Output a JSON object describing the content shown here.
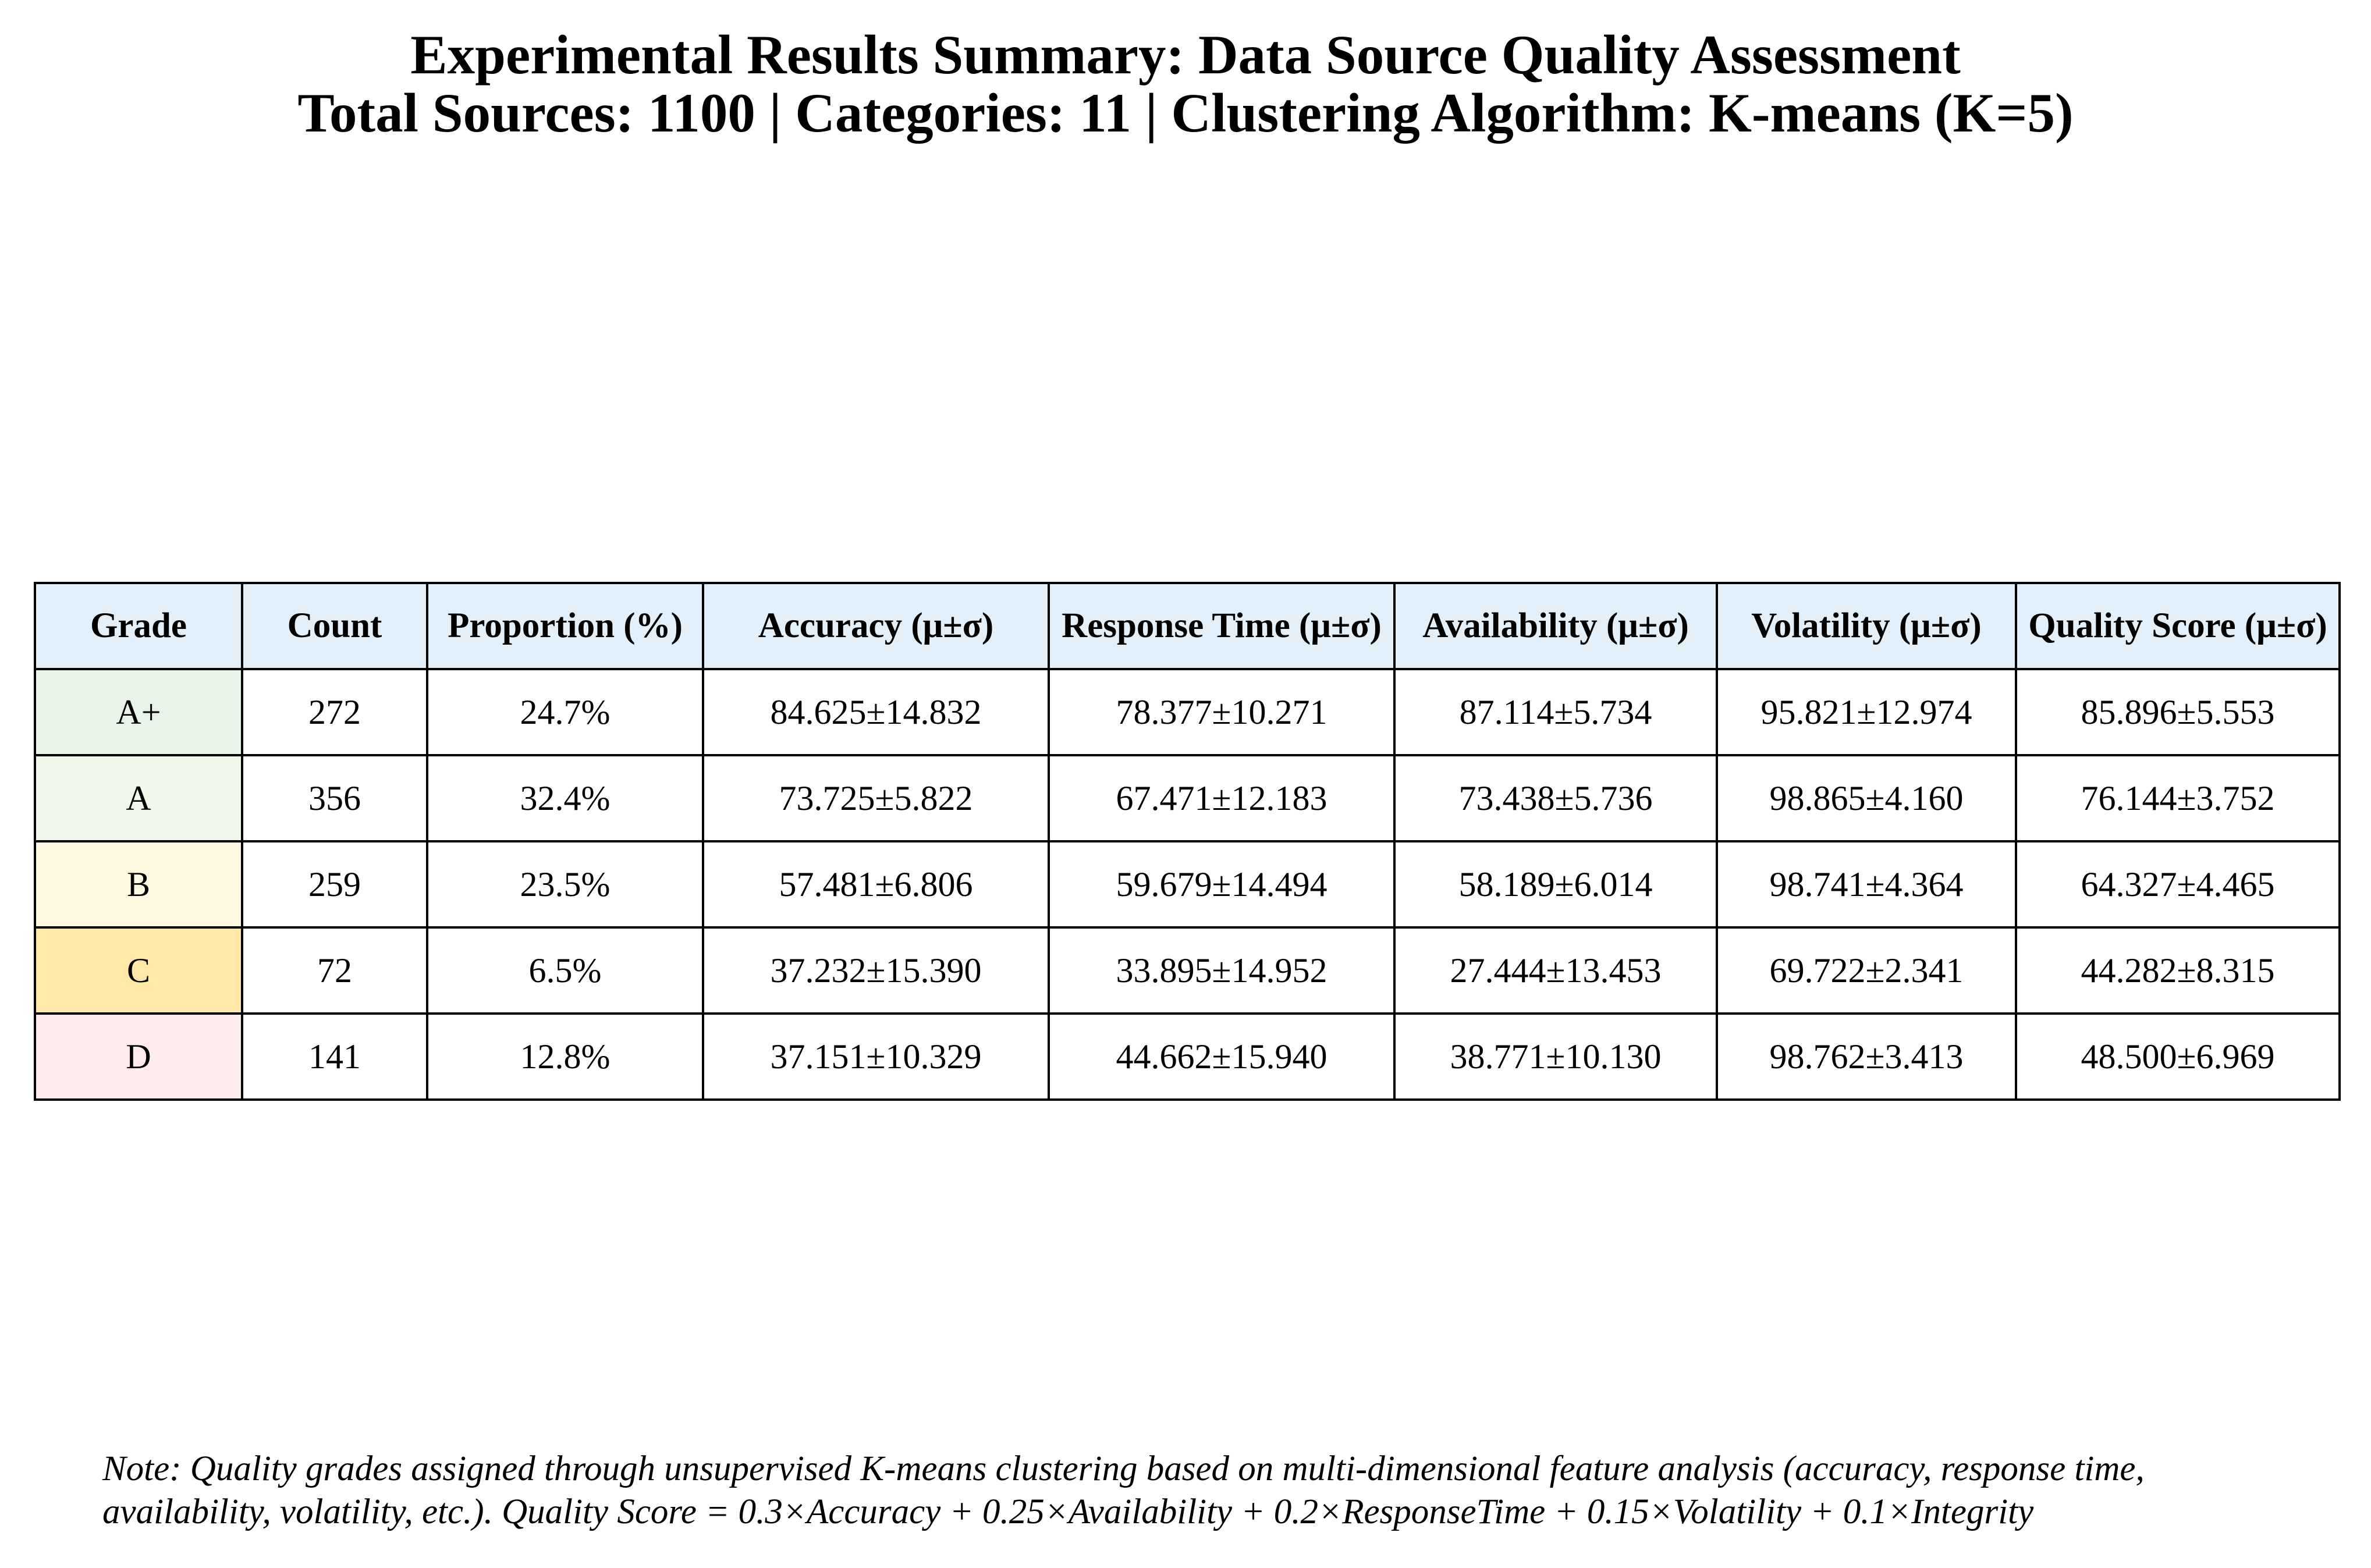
{
  "title": {
    "line1": "Experimental Results Summary: Data Source Quality Assessment",
    "line2": "Total Sources: 1100 | Categories: 11 | Clustering Algorithm: K-means (K=5)"
  },
  "chart_data": {
    "type": "table",
    "columns": [
      "Grade",
      "Count",
      "Proportion (%)",
      "Accuracy (μ±σ)",
      "Response Time (μ±σ)",
      "Availability (μ±σ)",
      "Volatility (μ±σ)",
      "Quality Score (μ±σ)"
    ],
    "rows": [
      {
        "grade": "A+",
        "count": "272",
        "proportion": "24.7%",
        "accuracy": "84.625±14.832",
        "response_time": "78.377±10.271",
        "availability": "87.114±5.734",
        "volatility": "95.821±12.974",
        "quality_score": "85.896±5.553"
      },
      {
        "grade": "A",
        "count": "356",
        "proportion": "32.4%",
        "accuracy": "73.725±5.822",
        "response_time": "67.471±12.183",
        "availability": "73.438±5.736",
        "volatility": "98.865±4.160",
        "quality_score": "76.144±3.752"
      },
      {
        "grade": "B",
        "count": "259",
        "proportion": "23.5%",
        "accuracy": "57.481±6.806",
        "response_time": "59.679±14.494",
        "availability": "58.189±6.014",
        "volatility": "98.741±4.364",
        "quality_score": "64.327±4.465"
      },
      {
        "grade": "C",
        "count": "72",
        "proportion": "6.5%",
        "accuracy": "37.232±15.390",
        "response_time": "33.895±14.952",
        "availability": "27.444±13.453",
        "volatility": "69.722±2.341",
        "quality_score": "44.282±8.315"
      },
      {
        "grade": "D",
        "count": "141",
        "proportion": "12.8%",
        "accuracy": "37.151±10.329",
        "response_time": "44.662±15.940",
        "availability": "38.771±10.130",
        "volatility": "98.762±3.413",
        "quality_score": "48.500±6.969"
      }
    ]
  },
  "colors": {
    "header_bg": "#e3f0fa",
    "grade_bg": {
      "A+": "#e8f4e8",
      "A": "#f1f8e9",
      "B": "#fff8e1",
      "C": "#ffe8a8",
      "D": "#ffebee"
    },
    "border": "#000000"
  },
  "note": {
    "line1": "Note: Quality grades assigned through unsupervised K-means clustering based on multi-dimensional feature analysis (accuracy, response time,",
    "line2": "availability, volatility, etc.). Quality Score = 0.3×Accuracy + 0.25×Availability + 0.2×ResponseTime + 0.15×Volatility + 0.1×Integrity"
  }
}
